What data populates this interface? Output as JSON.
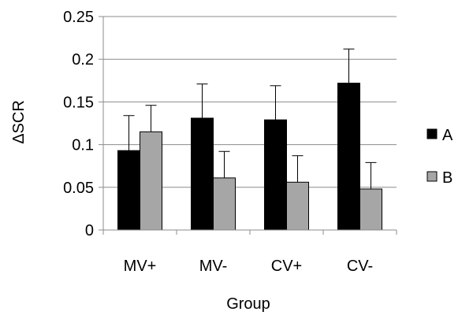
{
  "chart_data": {
    "type": "bar",
    "title": "",
    "xlabel": "Group",
    "ylabel": "ΔSCR",
    "categories": [
      "MV+",
      "MV-",
      "CV+",
      "CV-"
    ],
    "ylim": [
      0,
      0.25
    ],
    "yticks": [
      0,
      0.05,
      0.1,
      0.15,
      0.2,
      0.25
    ],
    "ytick_labels": [
      "0",
      "0.05",
      "0.1",
      "0.15",
      "0.2",
      "0.25"
    ],
    "grid": true,
    "legend_position": "right",
    "series": [
      {
        "name": "A",
        "color": "#000000",
        "values": [
          0.093,
          0.131,
          0.129,
          0.172
        ],
        "errors": [
          0.041,
          0.04,
          0.04,
          0.04
        ]
      },
      {
        "name": "B",
        "color": "#a6a6a6",
        "values": [
          0.115,
          0.061,
          0.056,
          0.048
        ],
        "errors": [
          0.031,
          0.031,
          0.031,
          0.031
        ]
      }
    ]
  }
}
